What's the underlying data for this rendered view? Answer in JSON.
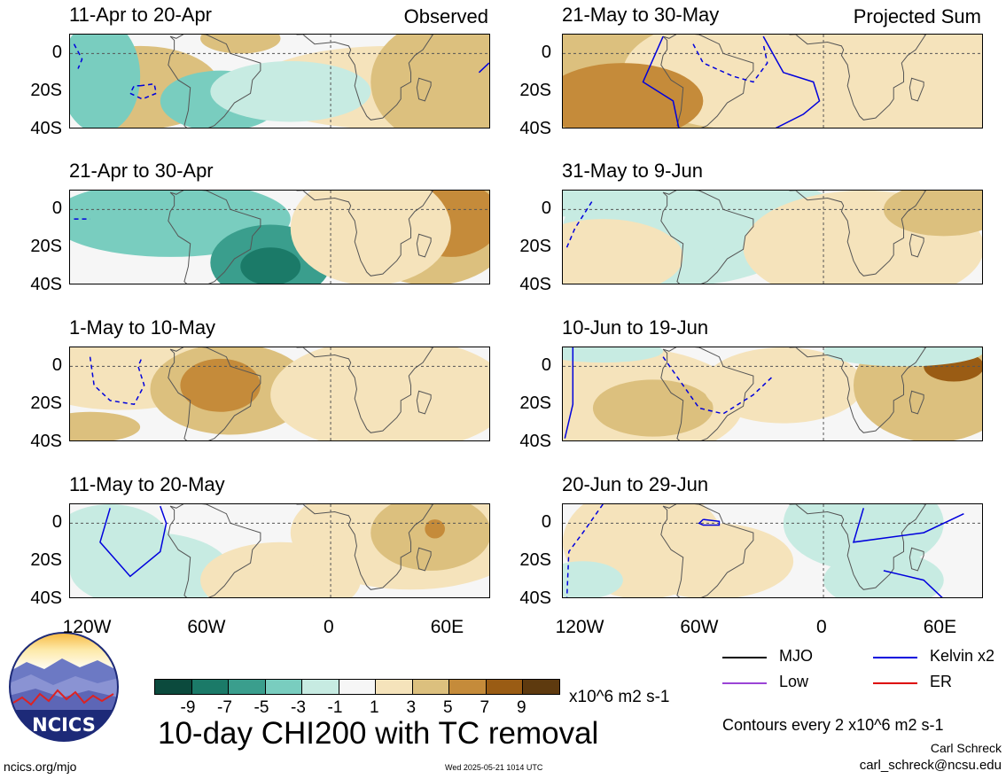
{
  "panels": [
    {
      "title": "11-Apr to 20-Apr",
      "label": "Observed"
    },
    {
      "title": "21-May to 30-May",
      "label": "Projected Sum"
    },
    {
      "title": "21-Apr to 30-Apr",
      "label": ""
    },
    {
      "title": "31-May to 9-Jun",
      "label": ""
    },
    {
      "title": "1-May to 10-May",
      "label": ""
    },
    {
      "title": "10-Jun to 19-Jun",
      "label": ""
    },
    {
      "title": "11-May to 20-May",
      "label": ""
    },
    {
      "title": "20-Jun to 29-Jun",
      "label": ""
    }
  ],
  "lat_ticks": [
    "0",
    "20S",
    "40S"
  ],
  "lon_ticks": [
    "120W",
    "60W",
    "0",
    "60E"
  ],
  "colorbar": {
    "colors": [
      "#0b4a3d",
      "#1b7a68",
      "#3a9e8d",
      "#79cdbf",
      "#c7ebe2",
      "#f6f6f6",
      "#f5e3bb",
      "#dcc07e",
      "#c58b3a",
      "#9a5c14",
      "#5e3a0f"
    ],
    "labels": [
      "-9",
      "-7",
      "-5",
      "-3",
      "-1",
      "1",
      "3",
      "5",
      "7",
      "9"
    ],
    "units": "x10^6 m2 s-1"
  },
  "main_title": "10-day CHI200 with TC removal",
  "legend": [
    {
      "name": "MJO",
      "color": "#000000"
    },
    {
      "name": "Kelvin x2",
      "color": "#0000dd"
    },
    {
      "name": "Low",
      "color": "#9b44d6"
    },
    {
      "name": "ER",
      "color": "#dd0000"
    }
  ],
  "contour_note": "Contours every 2 x10^6 m2 s-1",
  "author": "Carl Schreck",
  "email": "carl_schreck@ncsu.edu",
  "site": "ncics.org/mjo",
  "timestamp": "Wed 2025-05-21 1014 UTC",
  "logo_text": "NCICS"
}
